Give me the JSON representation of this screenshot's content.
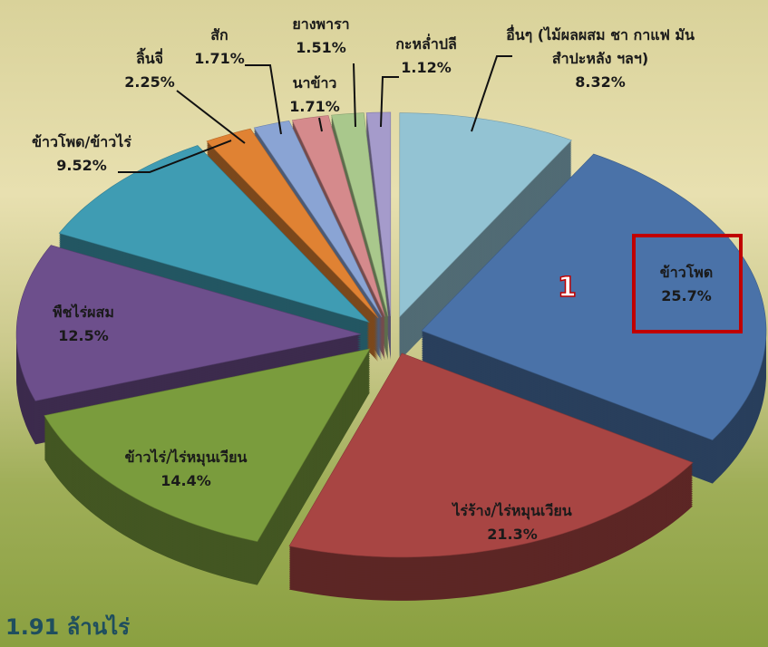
{
  "chart_data": {
    "type": "pie3d",
    "categories": [
      "ข้าวโพด",
      "ไร่ร้าง/ไร่หมุนเวียน",
      "ข้าวไร่/ไร่หมุนเวียน",
      "พืชไร่ผสม",
      "ข้าวโพด/ข้าวไร่",
      "ลิ้นจี่",
      "สัก",
      "นาข้าว",
      "ยางพารา",
      "กะหล่ำปลี",
      "อื่นๆ (ไม้ผลผสม ชา กาแฟ มันสำปะหลัง ฯลฯ)"
    ],
    "values": [
      25.7,
      21.3,
      14.4,
      12.5,
      9.52,
      2.25,
      1.71,
      1.71,
      1.51,
      1.12,
      8.32
    ],
    "value_labels": [
      "25.7%",
      "21.3%",
      "14.4%",
      "12.5%",
      "9.52%",
      "2.25%",
      "1.71%",
      "1.71%",
      "1.51%",
      "1.12%",
      "8.32%"
    ],
    "colors": [
      "#4a72a8",
      "#a84543",
      "#7a9c3d",
      "#6d4f8c",
      "#3f9cb3",
      "#e08233",
      "#8aa4d4",
      "#d58a8c",
      "#a9c88c",
      "#a59bcb",
      "#93c3d3"
    ],
    "annotations": [
      "1.91 ล้านไร่",
      "1"
    ]
  }
}
